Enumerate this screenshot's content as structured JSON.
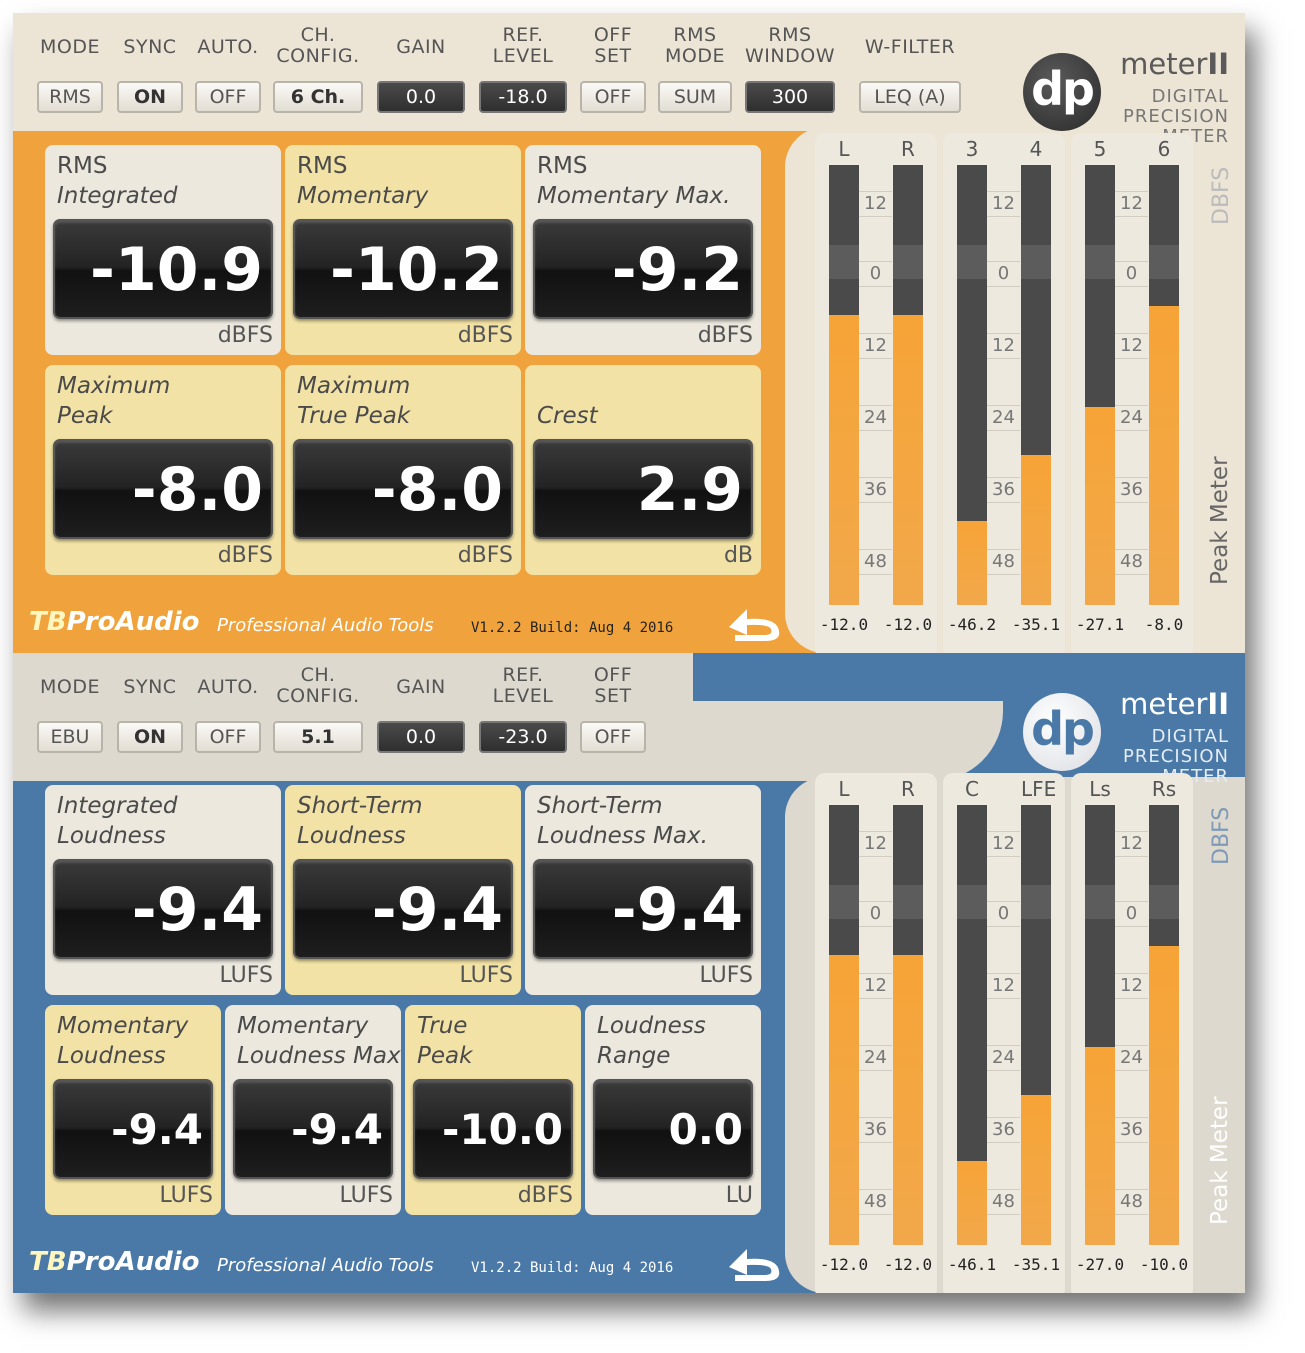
{
  "top": {
    "controls": [
      {
        "label": "MODE",
        "value": "RMS"
      },
      {
        "label": "SYNC",
        "value": "ON"
      },
      {
        "label": "AUTO.",
        "value": "OFF"
      },
      {
        "label": "CH.\nCONFIG.",
        "value": "6 Ch."
      },
      {
        "label": "GAIN",
        "value": "0.0"
      },
      {
        "label": "REF.\nLEVEL",
        "value": "-18.0"
      },
      {
        "label": "OFF\nSET",
        "value": "OFF"
      },
      {
        "label": "RMS\nMODE",
        "value": "SUM"
      },
      {
        "label": "RMS\nWINDOW",
        "value": "300"
      },
      {
        "label": "W-FILTER",
        "value": "LEQ (A)"
      }
    ],
    "logo": {
      "mark": "dp",
      "title_a": "meter",
      "title_b": "II",
      "sub": [
        "DIGITAL",
        "PRECISION",
        "METER"
      ]
    },
    "readouts": [
      {
        "title": [
          "RMS",
          "Integrated"
        ],
        "value": "-10.9",
        "unit": "dBFS"
      },
      {
        "title": [
          "RMS",
          "Momentary"
        ],
        "value": "-10.2",
        "unit": "dBFS"
      },
      {
        "title": [
          "RMS",
          "Momentary Max."
        ],
        "value": "-9.2",
        "unit": "dBFS"
      },
      {
        "title": [
          "Maximum",
          "Peak"
        ],
        "value": "-8.0",
        "unit": "dBFS"
      },
      {
        "title": [
          "Maximum",
          "True Peak"
        ],
        "value": "-8.0",
        "unit": "dBFS"
      },
      {
        "title": [
          "",
          "Crest"
        ],
        "value": "2.9",
        "unit": "dB"
      }
    ],
    "footer": {
      "brand_a": "TB",
      "brand_b": "ProAudio",
      "tagline": "Professional Audio Tools",
      "version": "V1.2.2 Build: Aug  4 2016"
    },
    "meter_side_top": "DBFS",
    "meter_side_bottom": "Peak Meter",
    "meter_groups": [
      {
        "channels": [
          "L",
          "R"
        ],
        "levels": [
          0.66,
          0.66
        ],
        "peaks": [
          "-12.0",
          "-12.0"
        ]
      },
      {
        "channels": [
          "3",
          "4"
        ],
        "levels": [
          0.19,
          0.34
        ],
        "peaks": [
          "-46.2",
          "-35.1"
        ]
      },
      {
        "channels": [
          "5",
          "6"
        ],
        "levels": [
          0.45,
          0.68
        ],
        "peaks": [
          "-27.1",
          "-8.0"
        ]
      }
    ]
  },
  "bottom": {
    "controls": [
      {
        "label": "MODE",
        "value": "EBU"
      },
      {
        "label": "SYNC",
        "value": "ON"
      },
      {
        "label": "AUTO.",
        "value": "OFF"
      },
      {
        "label": "CH.\nCONFIG.",
        "value": "5.1"
      },
      {
        "label": "GAIN",
        "value": "0.0"
      },
      {
        "label": "REF.\nLEVEL",
        "value": "-23.0"
      },
      {
        "label": "OFF\nSET",
        "value": "OFF"
      }
    ],
    "logo": {
      "mark": "dp",
      "title_a": "meter",
      "title_b": "II",
      "sub": [
        "DIGITAL",
        "PRECISION",
        "METER"
      ]
    },
    "readouts_row1": [
      {
        "title": [
          "Integrated",
          "Loudness"
        ],
        "value": "-9.4",
        "unit": "LUFS"
      },
      {
        "title": [
          "Short-Term",
          "Loudness"
        ],
        "value": "-9.4",
        "unit": "LUFS"
      },
      {
        "title": [
          "Short-Term",
          "Loudness Max."
        ],
        "value": "-9.4",
        "unit": "LUFS"
      }
    ],
    "readouts_row2": [
      {
        "title": [
          "Momentary",
          "Loudness"
        ],
        "value": "-9.4",
        "unit": "LUFS"
      },
      {
        "title": [
          "Momentary",
          "Loudness Max"
        ],
        "value": "-9.4",
        "unit": "LUFS"
      },
      {
        "title": [
          "True",
          "Peak"
        ],
        "value": "-10.0",
        "unit": "dBFS"
      },
      {
        "title": [
          "Loudness",
          "Range"
        ],
        "value": "0.0",
        "unit": "LU"
      }
    ],
    "footer": {
      "brand_a": "TB",
      "brand_b": "ProAudio",
      "tagline": "Professional Audio Tools",
      "version": "V1.2.2 Build: Aug  4 2016"
    },
    "meter_side_top": "DBFS",
    "meter_side_bottom": "Peak Meter",
    "meter_groups": [
      {
        "channels": [
          "L",
          "R"
        ],
        "levels": [
          0.66,
          0.66
        ],
        "peaks": [
          "-12.0",
          "-12.0"
        ]
      },
      {
        "channels": [
          "C",
          "LFE"
        ],
        "levels": [
          0.19,
          0.34
        ],
        "peaks": [
          "-46.1",
          "-35.1"
        ]
      },
      {
        "channels": [
          "Ls",
          "Rs"
        ],
        "levels": [
          0.45,
          0.68
        ],
        "peaks": [
          "-27.0",
          "-10.0"
        ]
      }
    ]
  },
  "scale_ticks": [
    "12",
    "0",
    "12",
    "24",
    "36",
    "48"
  ],
  "colors": {
    "accent_top": "#f0a33c",
    "accent_bottom": "#4a79a8",
    "meter_fill": "#f6a437"
  }
}
